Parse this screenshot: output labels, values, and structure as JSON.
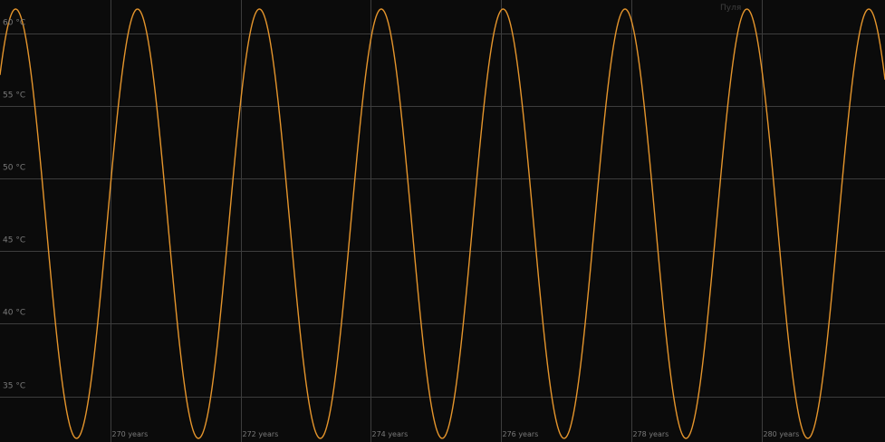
{
  "colors": {
    "background": "#0b0b0b",
    "grid": "#3d3d3d",
    "tick_text": "#7a7a7a",
    "line": "#e5952c"
  },
  "top_label": "Пуля",
  "chart_data": {
    "type": "line",
    "title": "",
    "xlabel": "",
    "ylabel": "",
    "x_unit": "years",
    "y_unit": "°C",
    "xlim": [
      268.3,
      281.9
    ],
    "ylim": [
      32.1,
      61.7
    ],
    "grid": true,
    "legend": "none",
    "y_ticks": [
      "35 °C",
      "40 °C",
      "45 °C",
      "50 °C",
      "55 °C",
      "60 °C"
    ],
    "y_tick_values": [
      35,
      40,
      45,
      50,
      55,
      60
    ],
    "x_ticks": [
      "270 years",
      "272 years",
      "274 years",
      "276 years",
      "278 years",
      "280 years"
    ],
    "x_tick_values": [
      270,
      272,
      274,
      276,
      278,
      280
    ],
    "series": [
      {
        "style": "sinusoid",
        "min": 32.1,
        "max": 61.7,
        "period_years": 1.873,
        "peaks_at_years": [
          268.54,
          270.41,
          272.29,
          274.16,
          276.03,
          277.91,
          279.78,
          281.65
        ],
        "troughs_at_years": [
          269.47,
          271.35,
          273.22,
          275.1,
          276.97,
          278.84,
          280.72
        ]
      }
    ]
  }
}
